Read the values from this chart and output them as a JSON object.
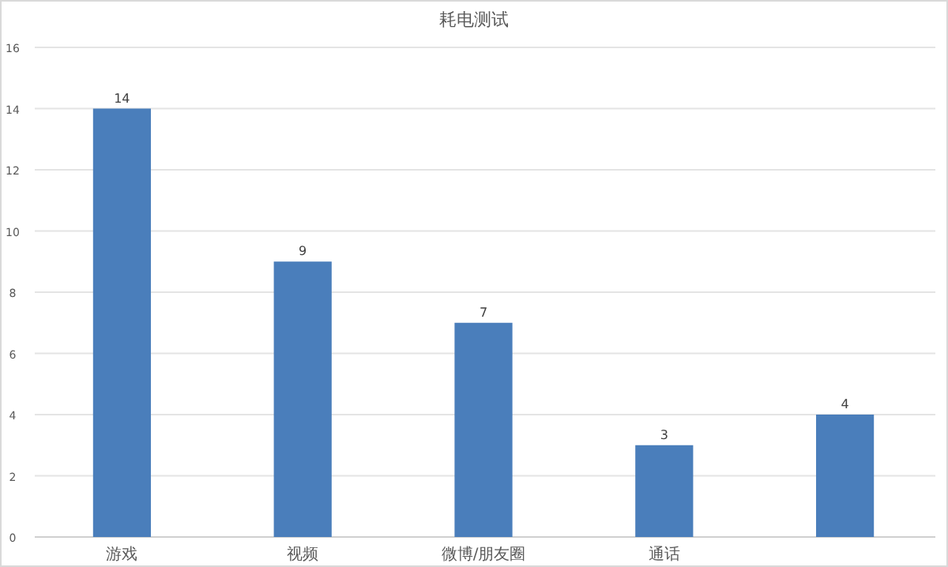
{
  "chart_data": {
    "type": "bar",
    "title": "耗电测试",
    "categories": [
      "游戏",
      "视频",
      "微博/朋友圈",
      "通话",
      null
    ],
    "values": [
      14,
      9,
      7,
      3,
      4
    ],
    "color": "#4a7ebb",
    "ylim": [
      0,
      16
    ],
    "yticks": [
      0,
      2,
      4,
      6,
      8,
      10,
      12,
      14,
      16
    ],
    "grid": "y",
    "data_labels": true
  }
}
